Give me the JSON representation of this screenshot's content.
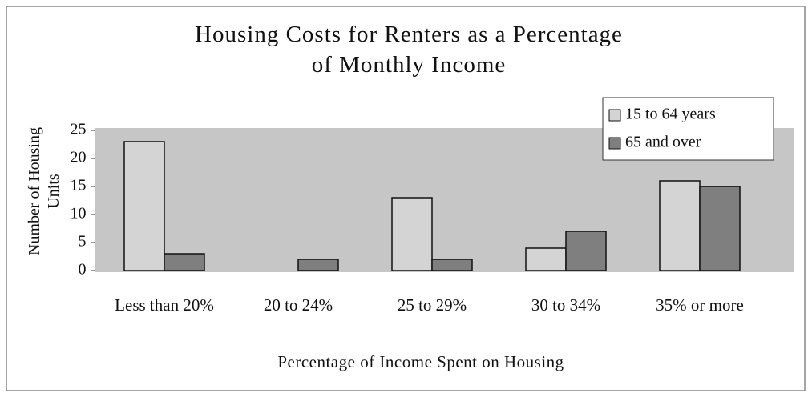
{
  "chart_data": {
    "type": "bar",
    "title": "Housing Costs for Renters as a Percentage of Monthly Income",
    "y_label": "Number of Housing Units",
    "x_label": "Percentage of Income Spent on Housing",
    "categories": [
      "Less than 20%",
      "20 to 24%",
      "25 to 29%",
      "30 to 34%",
      "35% or more"
    ],
    "series": [
      {
        "name": "15 to 64 years",
        "color": "#d4d4d4",
        "values": [
          23,
          0,
          13,
          4,
          16
        ]
      },
      {
        "name": "65 and over",
        "color": "#7f7f7f",
        "values": [
          3,
          2,
          2,
          7,
          15
        ]
      }
    ],
    "ylim": [
      0,
      25
    ],
    "yticks": [
      0,
      5,
      10,
      15,
      20,
      25
    ],
    "legend": "top-right"
  }
}
